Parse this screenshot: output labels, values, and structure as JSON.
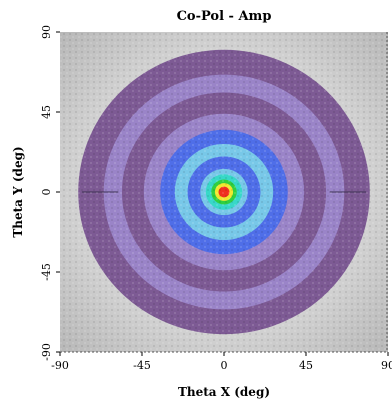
{
  "chart_data": {
    "type": "heatmap",
    "title": "Co-Pol - Amp",
    "xlabel": "Theta X (deg)",
    "ylabel": "Theta Y (deg)",
    "xlim": [
      -90,
      90
    ],
    "ylim": [
      -90,
      90
    ],
    "x_ticks": [
      {
        "value": -90,
        "label": "-90"
      },
      {
        "value": -45,
        "label": "-45"
      },
      {
        "value": 0,
        "label": "0"
      },
      {
        "value": 45,
        "label": "45"
      },
      {
        "value": 90,
        "label": "90"
      }
    ],
    "y_ticks": [
      {
        "value": 90,
        "label": "90"
      },
      {
        "value": 45,
        "label": "45"
      },
      {
        "value": 0,
        "label": "0"
      },
      {
        "value": -45,
        "label": "-45"
      },
      {
        "value": -90,
        "label": "-90"
      }
    ],
    "visible_region_radius_deg": 90,
    "colors": {
      "background_outside": "#c8c8c8",
      "far_sidelobe": "#7d5a94",
      "sidelobe_ring": "#9a84c8",
      "ring_blue": "#4f6ee8",
      "ring_light": "#78c8e8",
      "cyan": "#38d8c8",
      "green": "#30d040",
      "yellow": "#f0e830",
      "red": "#f03020"
    },
    "rings": [
      {
        "radius_deg": 80,
        "color": "far_sidelobe"
      },
      {
        "radius_deg": 66,
        "color": "sidelobe_ring"
      },
      {
        "radius_deg": 56,
        "color": "far_sidelobe"
      },
      {
        "radius_deg": 44,
        "color": "sidelobe_ring"
      },
      {
        "radius_deg": 35,
        "color": "ring_blue"
      },
      {
        "radius_deg": 27,
        "color": "ring_light"
      },
      {
        "radius_deg": 20,
        "color": "ring_blue"
      },
      {
        "radius_deg": 13,
        "color": "ring_light"
      },
      {
        "radius_deg": 10,
        "color": "cyan"
      },
      {
        "radius_deg": 7,
        "color": "green"
      },
      {
        "radius_deg": 5,
        "color": "yellow"
      },
      {
        "radius_deg": 3,
        "color": "red"
      }
    ],
    "grid": false
  }
}
